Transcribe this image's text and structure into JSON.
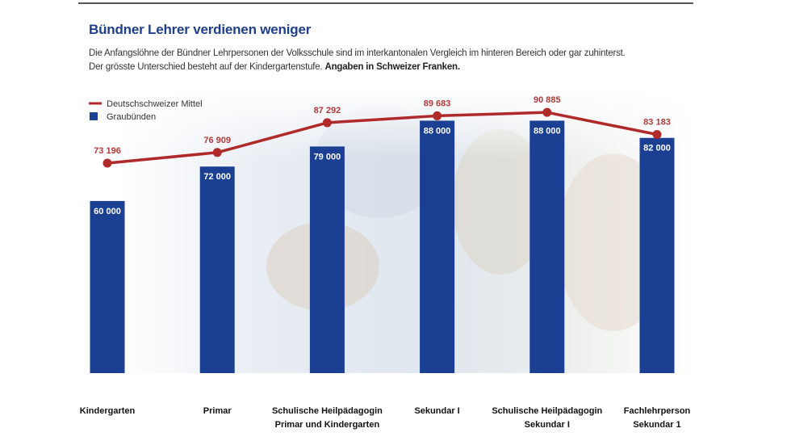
{
  "header": {
    "title": "Bündner Lehrer verdienen weniger",
    "subtitle_line1": "Die Anfangslöhne der Bündner Lehrpersonen der Volksschule sind im interkantonalen Vergleich im hinteren Bereich oder gar zuhinterst.",
    "subtitle_line2": "Der grösste Unterschied besteht auf der Kindergartenstufe.",
    "subtitle_strong": "Angaben in Schweizer Franken."
  },
  "chart_data": {
    "type": "bar",
    "categories": [
      [
        "Kindergarten"
      ],
      [
        "Primar"
      ],
      [
        "Schulische Heilpädagogin",
        "Primar und Kindergarten"
      ],
      [
        "Sekundar I"
      ],
      [
        "Schulische Heilpädagogin",
        "Sekundar I"
      ],
      [
        "Fachlehrperson",
        "Sekundar 1"
      ]
    ],
    "series": [
      {
        "name": "Deutschschweizer Mittel",
        "type": "line",
        "color": "#b02a2a",
        "values": [
          73196,
          76909,
          87292,
          89683,
          90885,
          83183
        ],
        "labels": [
          "73 196",
          "76 909",
          "87 292",
          "89 683",
          "90 885",
          "83 183"
        ]
      },
      {
        "name": "Graubünden",
        "type": "bar",
        "color": "#1b3f93",
        "values": [
          60000,
          72000,
          79000,
          88000,
          88000,
          82000
        ],
        "labels": [
          "60 000",
          "72 000",
          "79 000",
          "88 000",
          "88 000",
          "82 000"
        ]
      }
    ],
    "ylim": [
      0,
      100000
    ],
    "grid": false,
    "legend_position": "top-left"
  }
}
